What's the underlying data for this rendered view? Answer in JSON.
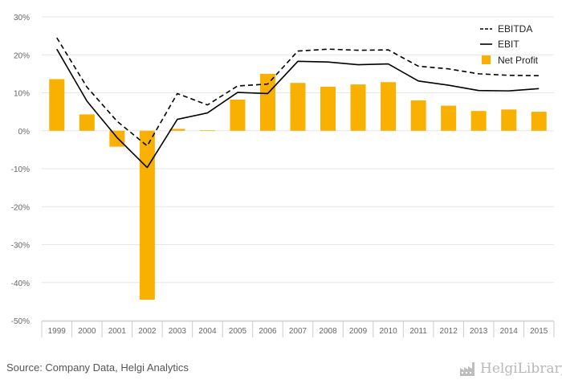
{
  "chart_data": {
    "type": "bar",
    "categories": [
      "1999",
      "2000",
      "2001",
      "2002",
      "2003",
      "2004",
      "2005",
      "2006",
      "2007",
      "2008",
      "2009",
      "2010",
      "2011",
      "2012",
      "2013",
      "2014",
      "2015"
    ],
    "series": [
      {
        "name": "EBITDA",
        "type": "line",
        "style": "dashed",
        "values": [
          24.5,
          11.5,
          2.5,
          -4.0,
          9.8,
          6.8,
          11.8,
          12.3,
          21.0,
          21.5,
          21.2,
          21.3,
          17.0,
          16.3,
          15.0,
          14.6,
          14.5
        ]
      },
      {
        "name": "EBIT",
        "type": "line",
        "style": "solid",
        "values": [
          21.5,
          7.8,
          -1.8,
          -9.7,
          3.0,
          4.7,
          10.1,
          9.8,
          18.3,
          18.1,
          17.4,
          17.6,
          13.1,
          12.0,
          10.6,
          10.5,
          11.1
        ]
      },
      {
        "name": "Net Profit",
        "type": "bar",
        "values": [
          13.6,
          4.3,
          -4.2,
          -44.5,
          0.5,
          0.1,
          8.2,
          15.0,
          12.6,
          11.6,
          12.2,
          12.8,
          8.0,
          6.6,
          5.2,
          5.6,
          5.0
        ]
      }
    ],
    "ylim": [
      -50,
      30
    ],
    "yticks": [
      "30%",
      "20%",
      "10%",
      "0%",
      "-10%",
      "-20%",
      "-30%",
      "-40%",
      "-50%"
    ],
    "ytick_values": [
      30,
      20,
      10,
      0,
      -10,
      -20,
      -30,
      -40,
      -50
    ],
    "grid": true,
    "legend_position": "top-right",
    "colors": {
      "bar": "#F8B100",
      "line": "#000000",
      "grid": "#e6e6e6",
      "axis": "#cccccc"
    }
  },
  "source_text": "Source: Company Data, Helgi Analytics",
  "brand": {
    "name": "HelgiLibrary",
    "icon": "factory-icon"
  }
}
